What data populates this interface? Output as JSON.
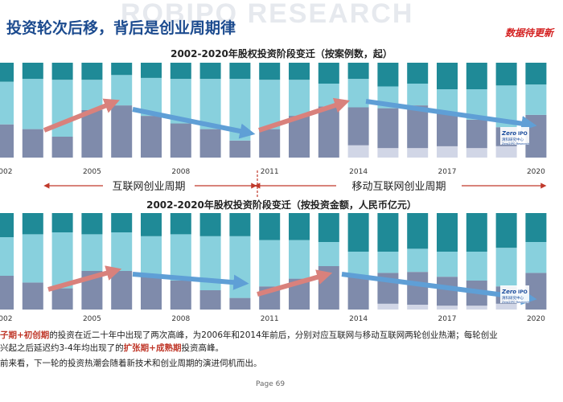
{
  "watermark": "ROBIPO RESEARCH",
  "slide": {
    "title": "投资轮次后移，背后是创业周期律",
    "update_tag": "数据待更新"
  },
  "logo": {
    "zero": "Zero",
    "ipo": "IPO",
    "cn": "清科研究中心",
    "en": "Zero2IPO Research"
  },
  "period_labels": {
    "internet": "互联网创业周期",
    "mobile": "移动互联网创业周期"
  },
  "colors": {
    "cyan": "#88d0dd",
    "teal": "#1f8a97",
    "slate": "#7f8bab",
    "pale": "#d1d6e6",
    "arrow_red": "#d9817c",
    "arrow_blue": "#5f9fd6"
  },
  "footer": {
    "line1_a": "子期+初创期",
    "line1_b": "的投资在近二十年中出现了两次高峰，为2006年和2014年前后，分别对应互联网与移动互联网两轮创业热潮；每轮创业",
    "line2_a": "兴起之后延迟约3-4年均出现了的",
    "line2_b": "扩张期+成熟期",
    "line2_c": "投资高峰。",
    "line3": "前来看，下一轮的投资热潮会随着新技术和创业周期的演进伺机而出。",
    "page": "Page  69"
  },
  "chart_data": [
    {
      "type": "bar",
      "title": "2002-2020年股权投资阶段变迁（按案例数，起）",
      "categories": [
        "2002",
        "2003",
        "2004",
        "2005",
        "2006",
        "2007",
        "2008",
        "2009",
        "2010",
        "2011",
        "2012",
        "2013",
        "2014",
        "2015",
        "2016",
        "2017",
        "2018",
        "2019",
        "2020"
      ],
      "x_tick_labels": [
        "2002",
        "2005",
        "2008",
        "2011",
        "2014",
        "2017",
        "2020"
      ],
      "stacked": true,
      "percent": true,
      "ylim": [
        0,
        100
      ],
      "series": [
        {
          "stage": "pale",
          "values": [
            0,
            0,
            0,
            0,
            0,
            0,
            0,
            0,
            0,
            0,
            0,
            0,
            13,
            10,
            10,
            12,
            10,
            12,
            0
          ]
        },
        {
          "stage": "slate",
          "values": [
            35,
            30,
            22,
            50,
            55,
            44,
            36,
            30,
            18,
            30,
            44,
            54,
            40,
            42,
            45,
            36,
            30,
            20,
            45
          ]
        },
        {
          "stage": "cyan",
          "values": [
            45,
            53,
            60,
            32,
            32,
            40,
            47,
            53,
            65,
            52,
            38,
            24,
            30,
            23,
            23,
            24,
            32,
            44,
            32
          ]
        },
        {
          "stage": "teal",
          "values": [
            20,
            17,
            18,
            18,
            13,
            16,
            17,
            17,
            17,
            18,
            18,
            22,
            17,
            25,
            22,
            28,
            28,
            24,
            23
          ]
        }
      ]
    },
    {
      "type": "bar",
      "title": "2002-2020年股权投资阶段变迁（按投资金额，人民币亿元）",
      "categories": [
        "2002",
        "2003",
        "2004",
        "2005",
        "2006",
        "2007",
        "2008",
        "2009",
        "2010",
        "2011",
        "2012",
        "2013",
        "2014",
        "2015",
        "2016",
        "2017",
        "2018",
        "2019",
        "2020"
      ],
      "x_tick_labels": [
        "2002",
        "2005",
        "2008",
        "2011",
        "2014",
        "2017",
        "2020"
      ],
      "stacked": true,
      "percent": true,
      "ylim": [
        0,
        100
      ],
      "series": [
        {
          "stage": "pale",
          "values": [
            0,
            0,
            0,
            0,
            0,
            0,
            0,
            0,
            0,
            0,
            0,
            0,
            0,
            6,
            5,
            4,
            4,
            6,
            0
          ]
        },
        {
          "stage": "slate",
          "values": [
            35,
            28,
            22,
            40,
            40,
            34,
            30,
            20,
            12,
            24,
            32,
            45,
            34,
            32,
            34,
            30,
            26,
            18,
            38
          ]
        },
        {
          "stage": "cyan",
          "values": [
            40,
            50,
            58,
            38,
            40,
            42,
            48,
            56,
            64,
            48,
            40,
            25,
            26,
            22,
            24,
            26,
            30,
            40,
            32
          ]
        },
        {
          "stage": "teal",
          "values": [
            25,
            22,
            20,
            22,
            20,
            24,
            22,
            24,
            24,
            28,
            28,
            30,
            40,
            40,
            37,
            40,
            40,
            36,
            30
          ]
        }
      ]
    }
  ]
}
